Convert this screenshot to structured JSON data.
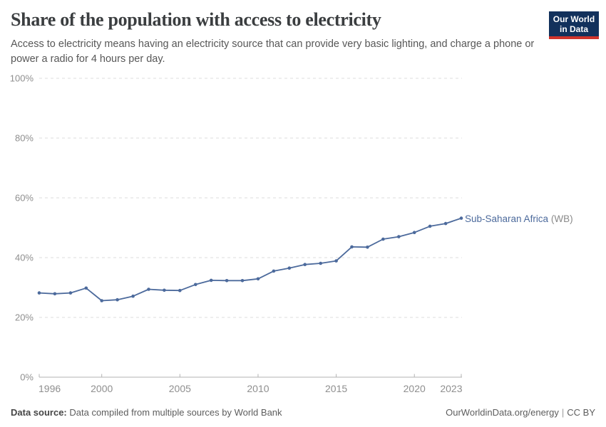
{
  "header": {
    "title": "Share of the population with access to electricity",
    "subtitle": "Access to electricity means having an electricity source that can provide very basic lighting, and charge a phone or power a radio for 4 hours per day.",
    "logo": {
      "line1": "Our World",
      "line2": "in Data",
      "bg_color": "#12315c",
      "accent_color": "#d0342c"
    }
  },
  "chart_data": {
    "type": "line",
    "title": "Share of the population with access to electricity",
    "x": [
      1996,
      1997,
      1998,
      1999,
      2000,
      2001,
      2002,
      2003,
      2004,
      2005,
      2006,
      2007,
      2008,
      2009,
      2010,
      2011,
      2012,
      2013,
      2014,
      2015,
      2016,
      2017,
      2018,
      2019,
      2020,
      2021,
      2022,
      2023
    ],
    "series": [
      {
        "name": "Sub-Saharan Africa",
        "suffix": " (WB)",
        "color": "#4C6A9C",
        "values": [
          28.2,
          27.9,
          28.2,
          29.8,
          25.6,
          25.9,
          27.1,
          29.4,
          29.1,
          29.0,
          31.0,
          32.4,
          32.3,
          32.3,
          32.9,
          35.5,
          36.5,
          37.7,
          38.1,
          38.9,
          43.6,
          43.5,
          46.2,
          47.0,
          48.4,
          50.5,
          51.4,
          53.2
        ]
      }
    ],
    "xlim": [
      1996,
      2023
    ],
    "ylim": [
      0,
      100
    ],
    "x_ticks": [
      1996,
      2000,
      2005,
      2010,
      2015,
      2020,
      2023
    ],
    "x_tick_labels": [
      "1996",
      "2000",
      "2005",
      "2010",
      "2015",
      "2020",
      "2023"
    ],
    "y_ticks": [
      0,
      20,
      40,
      60,
      80,
      100
    ],
    "y_tick_labels": [
      "0%",
      "20%",
      "40%",
      "60%",
      "80%",
      "100%"
    ],
    "grid": true,
    "legend_position": "end-of-line",
    "grid_color": "#dedede",
    "axis_color": "#b3b3b3",
    "tick_label_color": "#8f8f8f"
  },
  "footer": {
    "source_label": "Data source:",
    "source_text": "Data compiled from multiple sources by World Bank",
    "site": "OurWorldinData.org/energy",
    "license": "CC BY"
  }
}
